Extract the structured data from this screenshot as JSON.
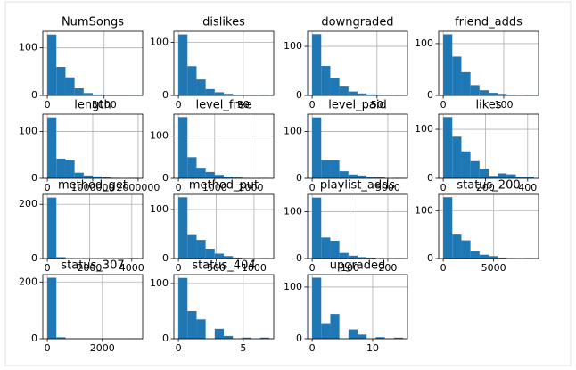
{
  "chart_data": [
    {
      "type": "histogram",
      "title": "NumSongs",
      "bins": [
        0,
        800,
        1600,
        2400,
        3200,
        4000,
        4800,
        5600,
        6400,
        7200,
        8000
      ],
      "values": [
        128,
        60,
        38,
        15,
        5,
        2,
        0,
        0,
        0,
        1
      ],
      "color": "#1f77b4",
      "xlim": [
        -400,
        8400
      ],
      "ylim": [
        0,
        135
      ],
      "xticks": [
        0,
        5000
      ],
      "yticks": [
        0,
        100
      ],
      "grid": true
    },
    {
      "type": "histogram",
      "title": "dislikes",
      "bins": [
        0,
        7,
        14,
        21,
        28,
        35,
        42,
        49,
        56,
        63,
        70
      ],
      "values": [
        115,
        55,
        30,
        12,
        6,
        3,
        1,
        0,
        0,
        1
      ],
      "color": "#1f77b4",
      "xlim": [
        -3.5,
        73.5
      ],
      "ylim": [
        0,
        121
      ],
      "xticks": [
        0,
        50
      ],
      "yticks": [
        0,
        100
      ],
      "grid": true
    },
    {
      "type": "histogram",
      "title": "downgraded",
      "bins": [
        0,
        7,
        14,
        21,
        28,
        35,
        42,
        49,
        56,
        63,
        70
      ],
      "values": [
        125,
        60,
        35,
        18,
        8,
        4,
        2,
        1,
        0,
        1
      ],
      "color": "#1f77b4",
      "xlim": [
        -3.5,
        73.5
      ],
      "ylim": [
        0,
        131
      ],
      "xticks": [
        0,
        50
      ],
      "yticks": [
        0,
        100
      ],
      "grid": true
    },
    {
      "type": "histogram",
      "title": "friend_adds",
      "bins": [
        0,
        15,
        30,
        45,
        60,
        75,
        90,
        105,
        120,
        135,
        150
      ],
      "values": [
        118,
        75,
        45,
        20,
        10,
        5,
        3,
        1,
        0,
        1
      ],
      "color": "#1f77b4",
      "xlim": [
        -7.5,
        157.5
      ],
      "ylim": [
        0,
        124
      ],
      "xticks": [
        0,
        100
      ],
      "yticks": [
        0,
        100
      ],
      "grid": true
    },
    {
      "type": "histogram",
      "title": "length",
      "bins": [
        0,
        200000,
        400000,
        600000,
        800000,
        1000000,
        1200000,
        1400000,
        1600000,
        1800000,
        2000000
      ],
      "values": [
        130,
        42,
        38,
        12,
        6,
        4,
        2,
        1,
        0,
        1
      ],
      "color": "#1f77b4",
      "xlim": [
        -100000,
        2100000
      ],
      "ylim": [
        0,
        137
      ],
      "xticks": [
        0,
        1000000,
        2000000
      ],
      "yticks": [
        0,
        100
      ],
      "grid": true
    },
    {
      "type": "histogram",
      "title": "level_free",
      "bins": [
        0,
        250,
        500,
        750,
        1000,
        1250,
        1500,
        1750,
        2000,
        2250,
        2500
      ],
      "values": [
        145,
        50,
        25,
        15,
        8,
        4,
        2,
        1,
        0,
        1
      ],
      "color": "#1f77b4",
      "xlim": [
        -125,
        2625
      ],
      "ylim": [
        0,
        152
      ],
      "xticks": [
        0,
        1000,
        2000
      ],
      "yticks": [
        0,
        100
      ],
      "grid": true
    },
    {
      "type": "histogram",
      "title": "level_paid",
      "bins": [
        0,
        600,
        1200,
        1800,
        2400,
        3000,
        3600,
        4200,
        4800,
        5400,
        6000
      ],
      "values": [
        130,
        38,
        38,
        15,
        8,
        6,
        3,
        2,
        0,
        1
      ],
      "color": "#1f77b4",
      "xlim": [
        -300,
        6300
      ],
      "ylim": [
        0,
        137
      ],
      "xticks": [
        0,
        5000
      ],
      "yticks": [
        0,
        100
      ],
      "grid": true
    },
    {
      "type": "histogram",
      "title": "likes",
      "bins": [
        0,
        43,
        86,
        129,
        172,
        215,
        258,
        301,
        344,
        387,
        430
      ],
      "values": [
        125,
        85,
        55,
        35,
        20,
        5,
        10,
        8,
        3,
        3
      ],
      "color": "#1f77b4",
      "xlim": [
        -21.5,
        451.5
      ],
      "ylim": [
        0,
        131
      ],
      "xticks": [
        0,
        200,
        400
      ],
      "yticks": [
        0,
        100
      ],
      "grid": true
    },
    {
      "type": "histogram",
      "title": "method_get",
      "bins": [
        0,
        430,
        860,
        1290,
        1720,
        2150,
        2580,
        3010,
        3440,
        3870,
        4300
      ],
      "values": [
        225,
        5,
        0,
        0,
        0,
        0,
        0,
        0,
        0,
        2
      ],
      "color": "#1f77b4",
      "xlim": [
        -215,
        4515
      ],
      "ylim": [
        0,
        237
      ],
      "xticks": [
        0,
        2000,
        4000
      ],
      "yticks": [
        0,
        200
      ],
      "grid": true
    },
    {
      "type": "histogram",
      "title": "method_put",
      "bins": [
        0,
        120,
        240,
        360,
        480,
        600,
        720,
        840,
        960,
        1080,
        1200
      ],
      "values": [
        125,
        48,
        38,
        20,
        10,
        5,
        2,
        1,
        0,
        1
      ],
      "color": "#1f77b4",
      "xlim": [
        -60,
        1260
      ],
      "ylim": [
        0,
        131
      ],
      "xticks": [
        0,
        500,
        1000
      ],
      "yticks": [
        0,
        100
      ],
      "grid": true
    },
    {
      "type": "histogram",
      "title": "playlist_adds",
      "bins": [
        0,
        24,
        48,
        72,
        96,
        120,
        144,
        168,
        192,
        216,
        240
      ],
      "values": [
        130,
        45,
        38,
        12,
        6,
        3,
        2,
        1,
        0,
        1
      ],
      "color": "#1f77b4",
      "xlim": [
        -12,
        252
      ],
      "ylim": [
        0,
        137
      ],
      "xticks": [
        0,
        100,
        200
      ],
      "yticks": [
        0,
        100
      ],
      "grid": true
    },
    {
      "type": "histogram",
      "title": "status_200",
      "bins": [
        0,
        900,
        1800,
        2700,
        3600,
        4500,
        5400,
        6300,
        7200,
        8100,
        9000
      ],
      "values": [
        128,
        50,
        38,
        15,
        8,
        5,
        2,
        1,
        0,
        1
      ],
      "color": "#1f77b4",
      "xlim": [
        -450,
        9450
      ],
      "ylim": [
        0,
        134
      ],
      "xticks": [
        0,
        5000
      ],
      "yticks": [
        0,
        100
      ],
      "grid": true
    },
    {
      "type": "histogram",
      "title": "status_307",
      "bins": [
        0,
        330,
        660,
        990,
        1320,
        1650,
        1980,
        2310,
        2640,
        2970,
        3300
      ],
      "values": [
        215,
        5,
        0,
        0,
        0,
        0,
        0,
        0,
        0,
        1
      ],
      "color": "#1f77b4",
      "xlim": [
        -165,
        3465
      ],
      "ylim": [
        0,
        226
      ],
      "xticks": [
        0,
        2000
      ],
      "yticks": [
        0,
        200
      ],
      "grid": true
    },
    {
      "type": "histogram",
      "title": "status_404",
      "bins": [
        0,
        0.7,
        1.4,
        2.1,
        2.8,
        3.5,
        4.2,
        4.9,
        5.6,
        6.3,
        7
      ],
      "values": [
        110,
        50,
        35,
        0,
        18,
        5,
        0,
        2,
        0,
        2
      ],
      "color": "#1f77b4",
      "xlim": [
        -0.35,
        7.35
      ],
      "ylim": [
        0,
        116
      ],
      "xticks": [
        0,
        5
      ],
      "yticks": [
        0,
        100
      ],
      "grid": true
    },
    {
      "type": "histogram",
      "title": "upgraded",
      "bins": [
        0,
        1.5,
        3,
        4.5,
        6,
        7.5,
        9,
        10.5,
        12,
        13.5,
        15
      ],
      "values": [
        118,
        30,
        48,
        0,
        18,
        8,
        0,
        3,
        0,
        2
      ],
      "color": "#1f77b4",
      "xlim": [
        -0.75,
        15.75
      ],
      "ylim": [
        0,
        124
      ],
      "xticks": [
        0,
        10
      ],
      "yticks": [
        0,
        100
      ],
      "grid": true
    }
  ]
}
